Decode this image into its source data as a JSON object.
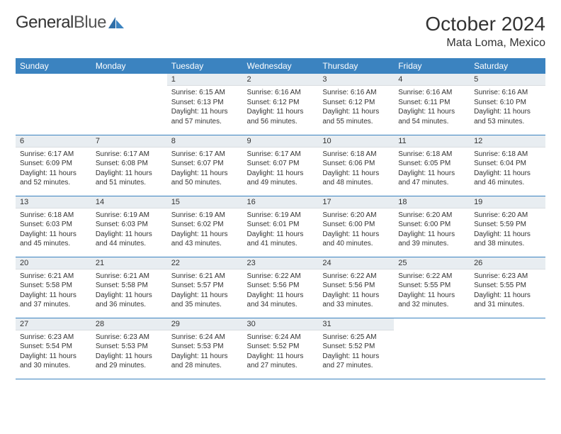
{
  "brand": {
    "part1": "General",
    "part2": "Blue"
  },
  "title": "October 2024",
  "location": "Mata Loma, Mexico",
  "colors": {
    "header_bg": "#3b83c0",
    "header_text": "#ffffff",
    "daynum_bg": "#e8edf1",
    "divider": "#3b83c0",
    "body_text": "#333333",
    "background": "#ffffff"
  },
  "typography": {
    "title_fontsize": 28,
    "location_fontsize": 16,
    "day_header_fontsize": 12,
    "daynum_fontsize": 11,
    "cell_fontsize": 10
  },
  "day_headers": [
    "Sunday",
    "Monday",
    "Tuesday",
    "Wednesday",
    "Thursday",
    "Friday",
    "Saturday"
  ],
  "weeks": [
    [
      null,
      null,
      {
        "n": "1",
        "sr": "6:15 AM",
        "ss": "6:13 PM",
        "dl": "11 hours and 57 minutes."
      },
      {
        "n": "2",
        "sr": "6:16 AM",
        "ss": "6:12 PM",
        "dl": "11 hours and 56 minutes."
      },
      {
        "n": "3",
        "sr": "6:16 AM",
        "ss": "6:12 PM",
        "dl": "11 hours and 55 minutes."
      },
      {
        "n": "4",
        "sr": "6:16 AM",
        "ss": "6:11 PM",
        "dl": "11 hours and 54 minutes."
      },
      {
        "n": "5",
        "sr": "6:16 AM",
        "ss": "6:10 PM",
        "dl": "11 hours and 53 minutes."
      }
    ],
    [
      {
        "n": "6",
        "sr": "6:17 AM",
        "ss": "6:09 PM",
        "dl": "11 hours and 52 minutes."
      },
      {
        "n": "7",
        "sr": "6:17 AM",
        "ss": "6:08 PM",
        "dl": "11 hours and 51 minutes."
      },
      {
        "n": "8",
        "sr": "6:17 AM",
        "ss": "6:07 PM",
        "dl": "11 hours and 50 minutes."
      },
      {
        "n": "9",
        "sr": "6:17 AM",
        "ss": "6:07 PM",
        "dl": "11 hours and 49 minutes."
      },
      {
        "n": "10",
        "sr": "6:18 AM",
        "ss": "6:06 PM",
        "dl": "11 hours and 48 minutes."
      },
      {
        "n": "11",
        "sr": "6:18 AM",
        "ss": "6:05 PM",
        "dl": "11 hours and 47 minutes."
      },
      {
        "n": "12",
        "sr": "6:18 AM",
        "ss": "6:04 PM",
        "dl": "11 hours and 46 minutes."
      }
    ],
    [
      {
        "n": "13",
        "sr": "6:18 AM",
        "ss": "6:03 PM",
        "dl": "11 hours and 45 minutes."
      },
      {
        "n": "14",
        "sr": "6:19 AM",
        "ss": "6:03 PM",
        "dl": "11 hours and 44 minutes."
      },
      {
        "n": "15",
        "sr": "6:19 AM",
        "ss": "6:02 PM",
        "dl": "11 hours and 43 minutes."
      },
      {
        "n": "16",
        "sr": "6:19 AM",
        "ss": "6:01 PM",
        "dl": "11 hours and 41 minutes."
      },
      {
        "n": "17",
        "sr": "6:20 AM",
        "ss": "6:00 PM",
        "dl": "11 hours and 40 minutes."
      },
      {
        "n": "18",
        "sr": "6:20 AM",
        "ss": "6:00 PM",
        "dl": "11 hours and 39 minutes."
      },
      {
        "n": "19",
        "sr": "6:20 AM",
        "ss": "5:59 PM",
        "dl": "11 hours and 38 minutes."
      }
    ],
    [
      {
        "n": "20",
        "sr": "6:21 AM",
        "ss": "5:58 PM",
        "dl": "11 hours and 37 minutes."
      },
      {
        "n": "21",
        "sr": "6:21 AM",
        "ss": "5:58 PM",
        "dl": "11 hours and 36 minutes."
      },
      {
        "n": "22",
        "sr": "6:21 AM",
        "ss": "5:57 PM",
        "dl": "11 hours and 35 minutes."
      },
      {
        "n": "23",
        "sr": "6:22 AM",
        "ss": "5:56 PM",
        "dl": "11 hours and 34 minutes."
      },
      {
        "n": "24",
        "sr": "6:22 AM",
        "ss": "5:56 PM",
        "dl": "11 hours and 33 minutes."
      },
      {
        "n": "25",
        "sr": "6:22 AM",
        "ss": "5:55 PM",
        "dl": "11 hours and 32 minutes."
      },
      {
        "n": "26",
        "sr": "6:23 AM",
        "ss": "5:55 PM",
        "dl": "11 hours and 31 minutes."
      }
    ],
    [
      {
        "n": "27",
        "sr": "6:23 AM",
        "ss": "5:54 PM",
        "dl": "11 hours and 30 minutes."
      },
      {
        "n": "28",
        "sr": "6:23 AM",
        "ss": "5:53 PM",
        "dl": "11 hours and 29 minutes."
      },
      {
        "n": "29",
        "sr": "6:24 AM",
        "ss": "5:53 PM",
        "dl": "11 hours and 28 minutes."
      },
      {
        "n": "30",
        "sr": "6:24 AM",
        "ss": "5:52 PM",
        "dl": "11 hours and 27 minutes."
      },
      {
        "n": "31",
        "sr": "6:25 AM",
        "ss": "5:52 PM",
        "dl": "11 hours and 27 minutes."
      },
      null,
      null
    ]
  ],
  "labels": {
    "sunrise_prefix": "Sunrise: ",
    "sunset_prefix": "Sunset: ",
    "daylight_prefix": "Daylight: "
  }
}
